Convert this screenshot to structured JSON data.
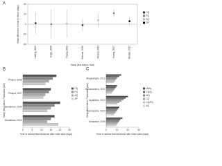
{
  "chart_data": [
    {
      "type": "errorbar",
      "panel": "A",
      "ylabel": "Mean difference in time to return (days)",
      "xlabel": "Study (first Author, Year)",
      "categories": [
        "Hadley, 2009",
        "Engle, 2006",
        "Trasky, 2009",
        "Sharma, 2010",
        "Ahmed, 2011",
        "Hoang, 2007",
        "Bhutan, 2012"
      ],
      "series": [
        {
          "name": "CQ",
          "color": "#333333",
          "values": [
            2,
            null,
            null,
            -2,
            null,
            null,
            null
          ],
          "errors": [
            22,
            null,
            null,
            12,
            null,
            null,
            null
          ]
        },
        {
          "name": "PQ",
          "color": "#888888",
          "values": [
            null,
            0,
            null,
            null,
            null,
            22,
            null
          ],
          "errors": [
            null,
            30,
            null,
            null,
            null,
            8,
            null
          ]
        },
        {
          "name": "AQ",
          "color": "#bbbbbb",
          "values": [
            null,
            null,
            1,
            null,
            8,
            null,
            null
          ],
          "errors": [
            null,
            null,
            28,
            null,
            14,
            null,
            null
          ]
        },
        {
          "name": "SP",
          "color": "#000000",
          "values": [
            null,
            null,
            null,
            null,
            null,
            null,
            6
          ],
          "errors": [
            null,
            null,
            null,
            null,
            null,
            null,
            9
          ]
        }
      ],
      "ylim": [
        -40,
        40
      ],
      "yticks": [
        -40,
        -20,
        0,
        20,
        40
      ],
      "legend": "right"
    },
    {
      "type": "barh",
      "panel": "B",
      "ylabel": "Study (first Author, Publication year)",
      "xlabel": "Time to assess fever/sickness after index case (days)",
      "categories": [
        "Phulpur, 2008",
        "Phulpur, 2007",
        "Bandarban, 2009",
        "Bandarban, 2010"
      ],
      "series": [
        {
          "name": "CQ",
          "color": "#555555",
          "values": [
            18,
            15,
            20,
            17
          ]
        },
        {
          "name": "PQ",
          "color": "#888888",
          "values": [
            16,
            14,
            17,
            15
          ]
        },
        {
          "name": "AQ",
          "color": "#aaaaaa",
          "values": [
            14,
            12,
            15,
            13
          ]
        },
        {
          "name": "SP",
          "color": "#cccccc",
          "values": [
            12,
            11,
            13,
            19
          ]
        }
      ],
      "xlim": [
        0,
        25
      ],
      "xticks": [
        0,
        5,
        10,
        15,
        20,
        25
      ],
      "legend": "right"
    },
    {
      "type": "barh",
      "panel": "C",
      "ylabel": "Study (first Author, Publication year)",
      "xlabel": "Time to assess fever/sickness after index case (days)",
      "categories": [
        "Abeyasinghe, 2012",
        "Gunawardena, 2011",
        "Jayatilleke, 2013",
        "Karunaratne, 2010",
        "Senaratne, 2009"
      ],
      "series": [
        {
          "name": "Mefq",
          "color": "#444444",
          "values": [
            14,
            10,
            20,
            12,
            15
          ]
        },
        {
          "name": "CQ/Q",
          "color": "#666666",
          "values": [
            12,
            9,
            18,
            11,
            13
          ]
        },
        {
          "name": "MQ",
          "color": "#888888",
          "values": [
            10,
            8,
            16,
            10,
            12
          ]
        },
        {
          "name": "CQ",
          "color": "#a0a0a0",
          "values": [
            9,
            7,
            14,
            9,
            11
          ]
        },
        {
          "name": "CQ/PQ",
          "color": "#bbbbbb",
          "values": [
            8,
            6,
            12,
            8,
            10
          ]
        },
        {
          "name": "AQ",
          "color": "#d5d5d5",
          "values": [
            7,
            5,
            10,
            7,
            9
          ]
        }
      ],
      "xlim": [
        0,
        30
      ],
      "xticks": [
        0,
        10,
        20,
        30
      ],
      "legend": "right"
    }
  ]
}
